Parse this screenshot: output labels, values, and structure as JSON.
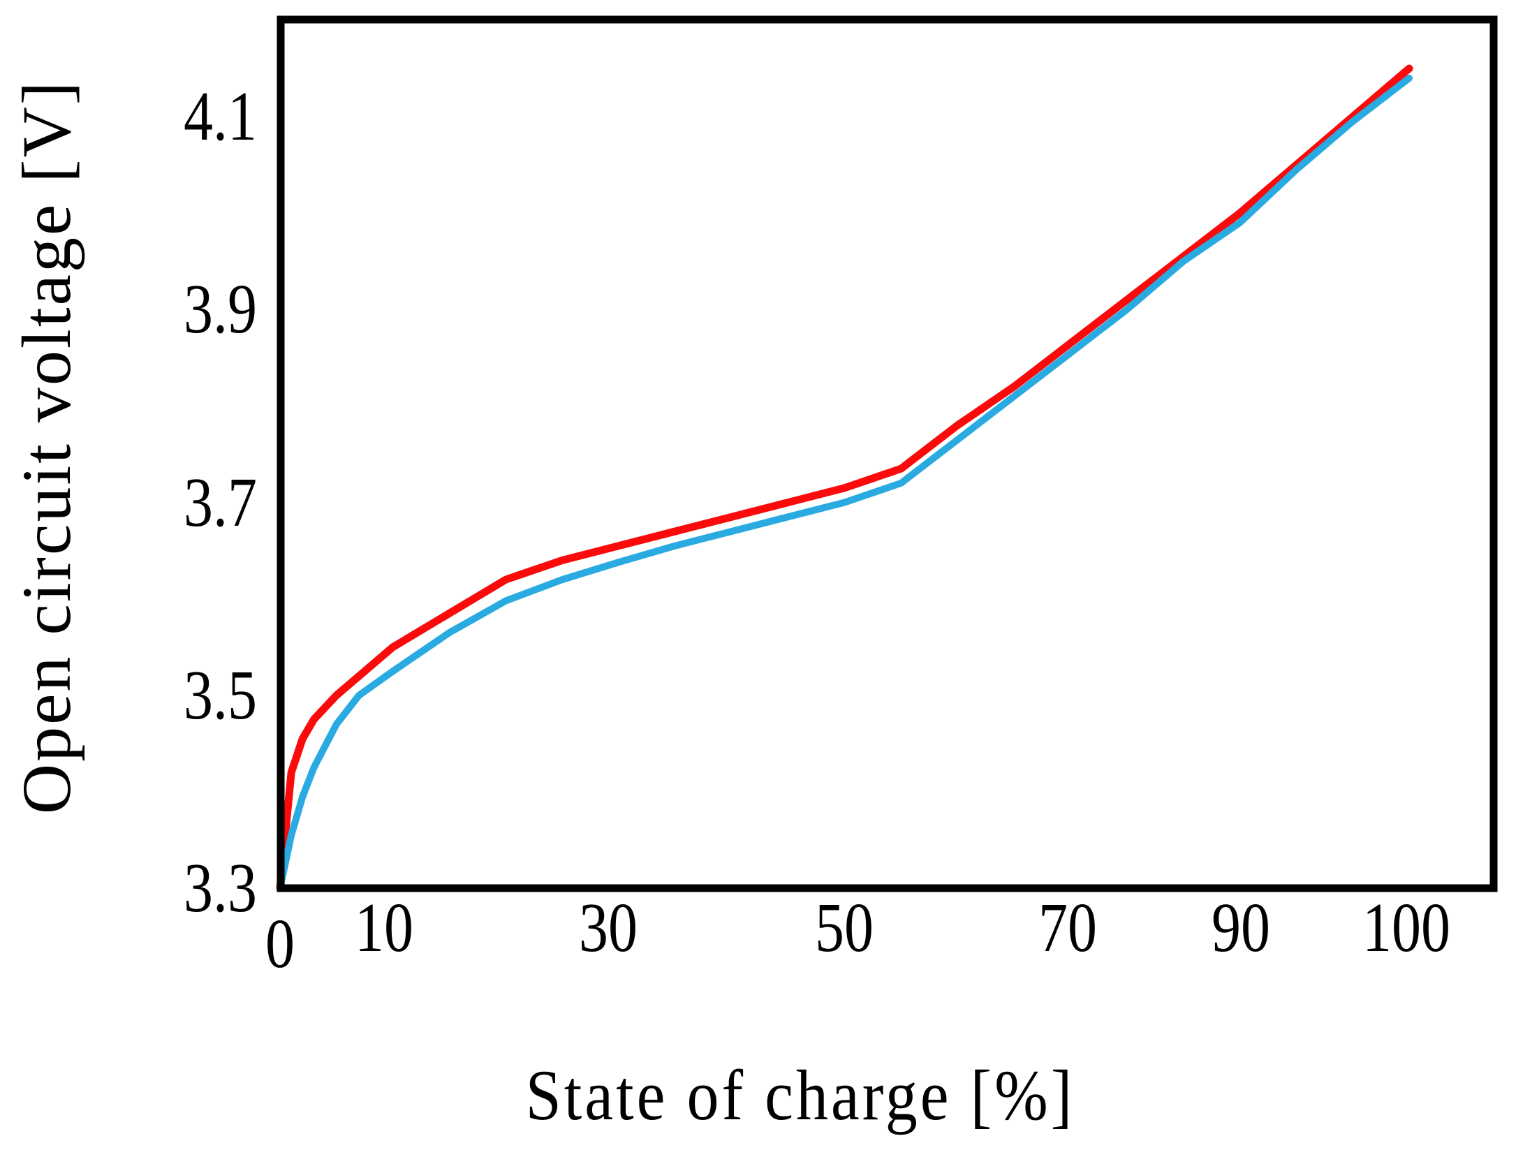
{
  "figure": {
    "background": "#FFFFFF",
    "frame_color": "#000000"
  },
  "chart_data": {
    "type": "line",
    "title": "",
    "xlabel": "State of charge [%]",
    "ylabel": "Open circuit voltage [V]",
    "xlim": [
      0,
      107.5
    ],
    "ylim": [
      3.3,
      4.2
    ],
    "grid": false,
    "legend": "none",
    "x_tick_labels": [
      "0",
      "10",
      "30",
      "50",
      "70",
      "90",
      "100"
    ],
    "y_tick_labels": [
      "4.1",
      "3.9",
      "3.7",
      "3.5",
      "3.3"
    ],
    "x": [
      0,
      1,
      2,
      3,
      5,
      7,
      10,
      15,
      20,
      25,
      30,
      35,
      40,
      45,
      50,
      55,
      60,
      65,
      70,
      75,
      80,
      85,
      90,
      95,
      100
    ],
    "series": [
      {
        "name": "red",
        "color": "#FA0A0A",
        "stroke_width": 11,
        "values": [
          3.3,
          3.42,
          3.455,
          3.475,
          3.5,
          3.52,
          3.55,
          3.585,
          3.62,
          3.64,
          3.655,
          3.67,
          3.685,
          3.7,
          3.715,
          3.735,
          3.78,
          3.82,
          3.865,
          3.91,
          3.955,
          4.0,
          4.05,
          4.1,
          4.15
        ]
      },
      {
        "name": "blue",
        "color": "#29ABE2",
        "stroke_width": 10,
        "values": [
          3.3,
          3.355,
          3.395,
          3.425,
          3.47,
          3.5,
          3.525,
          3.565,
          3.598,
          3.62,
          3.638,
          3.655,
          3.67,
          3.685,
          3.7,
          3.72,
          3.765,
          3.81,
          3.855,
          3.9,
          3.95,
          3.99,
          4.045,
          4.095,
          4.14
        ]
      }
    ]
  }
}
